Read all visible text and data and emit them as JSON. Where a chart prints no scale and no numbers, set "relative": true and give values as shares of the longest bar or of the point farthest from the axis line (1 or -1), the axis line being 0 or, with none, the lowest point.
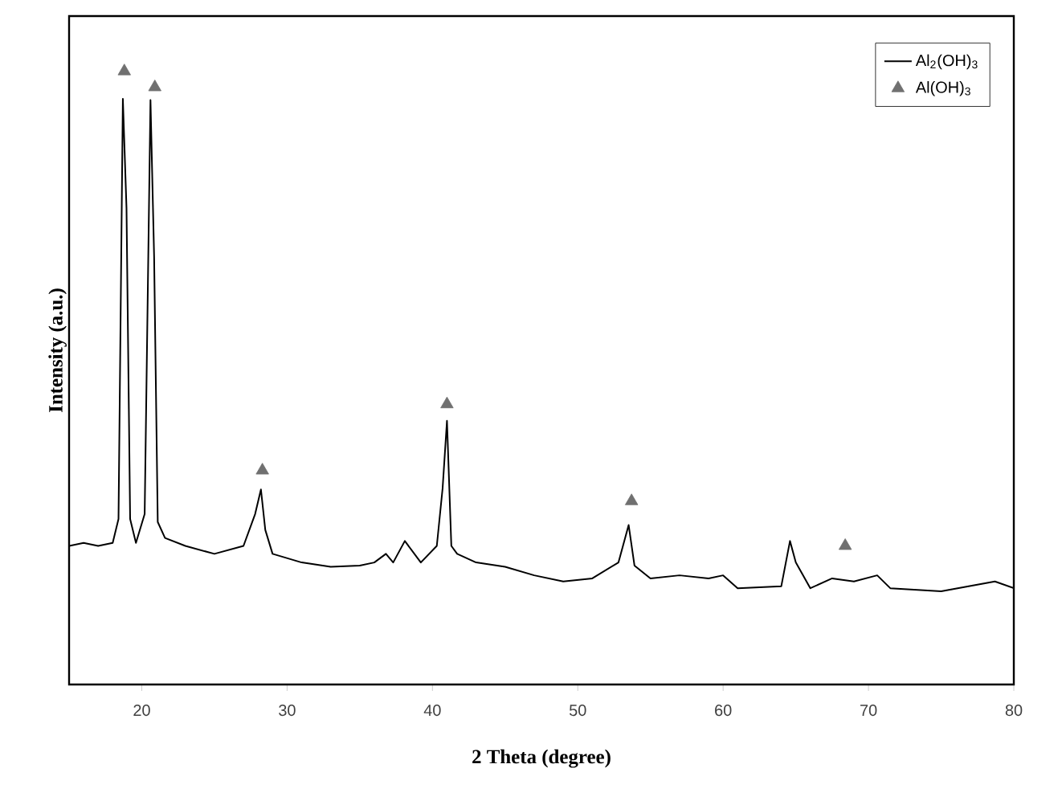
{
  "chart_data": {
    "type": "line",
    "xlabel": "2 Theta (degree)",
    "ylabel": "Intensity (a.u.)",
    "xlim": [
      15,
      80
    ],
    "xticks": [
      20,
      30,
      40,
      50,
      60,
      70,
      80
    ],
    "relative": true,
    "legend": "top right",
    "series": [
      {
        "name": "Al$_{2}$(OH)$_{3}$",
        "color": "#000000",
        "x": [
          15,
          16,
          17,
          18,
          18.4,
          18.7,
          18.95,
          19.2,
          19.6,
          20.2,
          20.6,
          20.85,
          21.1,
          21.6,
          23,
          25,
          27,
          27.8,
          28.2,
          28.5,
          29,
          31,
          33,
          35,
          36,
          36.8,
          37.3,
          38.1,
          39.2,
          40.3,
          40.7,
          41.0,
          41.3,
          41.7,
          43,
          45,
          47,
          49,
          51,
          52.8,
          53.5,
          53.9,
          55,
          57,
          59,
          60,
          61,
          64,
          64.6,
          65,
          66,
          67.5,
          69,
          70.6,
          71.5,
          75,
          78.7,
          80
        ],
        "values": [
          0.226,
          0.231,
          0.226,
          0.231,
          0.27,
          0.955,
          0.777,
          0.27,
          0.231,
          0.278,
          0.953,
          0.698,
          0.265,
          0.239,
          0.226,
          0.213,
          0.226,
          0.278,
          0.318,
          0.252,
          0.213,
          0.199,
          0.192,
          0.194,
          0.199,
          0.213,
          0.199,
          0.234,
          0.199,
          0.226,
          0.32,
          0.43,
          0.226,
          0.213,
          0.199,
          0.192,
          0.178,
          0.168,
          0.173,
          0.199,
          0.26,
          0.194,
          0.173,
          0.178,
          0.173,
          0.178,
          0.157,
          0.16,
          0.234,
          0.199,
          0.157,
          0.173,
          0.168,
          0.178,
          0.157,
          0.152,
          0.168,
          0.157
        ]
      },
      {
        "name": "Al(OH)$_{3}$",
        "type": "scatter",
        "color": "#707070",
        "marker": "triangle",
        "x": [
          18.8,
          20.9,
          28.3,
          41.0,
          53.7,
          68.4
        ],
        "values": [
          1.0,
          0.974,
          0.349,
          0.457,
          0.299,
          0.226
        ]
      }
    ]
  }
}
